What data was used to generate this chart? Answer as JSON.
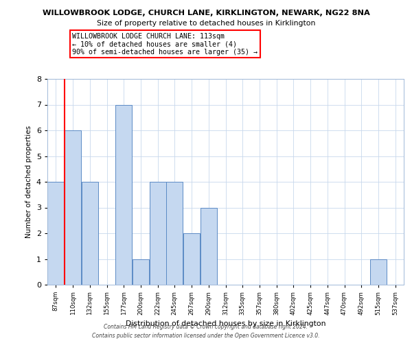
{
  "title1": "WILLOWBROOK LODGE, CHURCH LANE, KIRKLINGTON, NEWARK, NG22 8NA",
  "title2": "Size of property relative to detached houses in Kirklington",
  "xlabel": "Distribution of detached houses by size in Kirklington",
  "ylabel": "Number of detached properties",
  "bin_labels": [
    "87sqm",
    "110sqm",
    "132sqm",
    "155sqm",
    "177sqm",
    "200sqm",
    "222sqm",
    "245sqm",
    "267sqm",
    "290sqm",
    "312sqm",
    "335sqm",
    "357sqm",
    "380sqm",
    "402sqm",
    "425sqm",
    "447sqm",
    "470sqm",
    "492sqm",
    "515sqm",
    "537sqm"
  ],
  "bar_heights": [
    4,
    6,
    4,
    0,
    7,
    1,
    4,
    4,
    2,
    3,
    0,
    0,
    0,
    0,
    0,
    0,
    0,
    0,
    0,
    1,
    0
  ],
  "bar_color": "#c5d8f0",
  "bar_edge_color": "#5b8ac5",
  "red_line_bin_index": 1,
  "ylim": [
    0,
    8
  ],
  "yticks": [
    0,
    1,
    2,
    3,
    4,
    5,
    6,
    7,
    8
  ],
  "annotation_line1": "WILLOWBROOK LODGE CHURCH LANE: 113sqm",
  "annotation_line2": "← 10% of detached houses are smaller (4)",
  "annotation_line3": "90% of semi-detached houses are larger (35) →",
  "footer1": "Contains HM Land Registry data © Crown copyright and database right 2024.",
  "footer2": "Contains public sector information licensed under the Open Government Licence v3.0."
}
